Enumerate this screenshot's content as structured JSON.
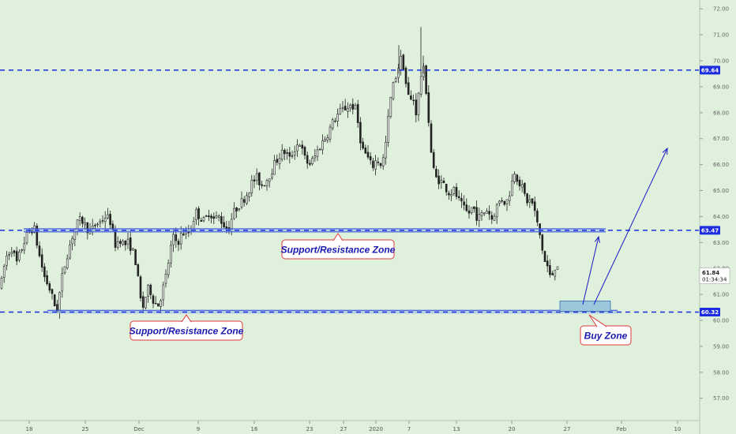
{
  "chart_data": {
    "type": "candlestick",
    "ylim": [
      56.3,
      72.1
    ],
    "y_ticks": [
      "57.00",
      "58.00",
      "59.00",
      "60.00",
      "61.00",
      "62.00",
      "63.00",
      "64.00",
      "65.00",
      "66.00",
      "67.00",
      "68.00",
      "69.00",
      "70.00",
      "71.00",
      "72.00"
    ],
    "x_ticks": [
      "18",
      "25",
      "Dec",
      "9",
      "16",
      "23",
      "27",
      "2020",
      "7",
      "13",
      "20",
      "27",
      "Feb",
      "10"
    ],
    "levels": [
      {
        "value": 69.64,
        "label": "69.64",
        "style": "dashed"
      },
      {
        "value": 63.47,
        "label": "63.47",
        "style": "dashed"
      },
      {
        "value": 60.32,
        "label": "60.32",
        "style": "dashed"
      }
    ],
    "current_price": {
      "value": 61.84,
      "label": "61.84",
      "countdown": "01:34:34"
    },
    "annotations": [
      {
        "text": "Support/Resistance Zone"
      },
      {
        "text": "Support/Resistance Zone"
      },
      {
        "text": "Buy Zone"
      }
    ],
    "price_path": [
      [
        0,
        61.3
      ],
      [
        6,
        62.4
      ],
      [
        14,
        62.8
      ],
      [
        20,
        62.2
      ],
      [
        28,
        62.9
      ],
      [
        35,
        63.4
      ],
      [
        42,
        63.6
      ],
      [
        48,
        62.6
      ],
      [
        55,
        61.7
      ],
      [
        62,
        61.2
      ],
      [
        68,
        60.6
      ],
      [
        72,
        60.4
      ],
      [
        76,
        61.4
      ],
      [
        82,
        62.3
      ],
      [
        90,
        63.2
      ],
      [
        96,
        63.7
      ],
      [
        102,
        63.9
      ],
      [
        108,
        63.6
      ],
      [
        114,
        63.4
      ],
      [
        120,
        63.7
      ],
      [
        126,
        63.8
      ],
      [
        132,
        64.0
      ],
      [
        138,
        63.9
      ],
      [
        142,
        63.3
      ],
      [
        146,
        62.8
      ],
      [
        150,
        63.2
      ],
      [
        156,
        62.9
      ],
      [
        162,
        63.0
      ],
      [
        168,
        62.6
      ],
      [
        172,
        62.1
      ],
      [
        176,
        60.9
      ],
      [
        180,
        60.5
      ],
      [
        184,
        61.0
      ],
      [
        188,
        61.3
      ],
      [
        194,
        60.7
      ],
      [
        200,
        60.6
      ],
      [
        206,
        61.3
      ],
      [
        210,
        61.8
      ],
      [
        214,
        62.6
      ],
      [
        218,
        63.2
      ],
      [
        224,
        63.0
      ],
      [
        230,
        63.4
      ],
      [
        236,
        63.3
      ],
      [
        242,
        63.6
      ],
      [
        246,
        64.2
      ],
      [
        252,
        64.0
      ],
      [
        258,
        63.8
      ],
      [
        264,
        64.2
      ],
      [
        270,
        63.9
      ],
      [
        276,
        64.0
      ],
      [
        282,
        63.7
      ],
      [
        288,
        63.5
      ],
      [
        294,
        64.1
      ],
      [
        300,
        64.4
      ],
      [
        306,
        64.6
      ],
      [
        312,
        64.9
      ],
      [
        318,
        65.3
      ],
      [
        324,
        65.5
      ],
      [
        330,
        65.2
      ],
      [
        336,
        65.4
      ],
      [
        342,
        65.7
      ],
      [
        348,
        66.1
      ],
      [
        354,
        66.4
      ],
      [
        360,
        66.5
      ],
      [
        366,
        66.2
      ],
      [
        372,
        66.6
      ],
      [
        378,
        66.9
      ],
      [
        384,
        66.3
      ],
      [
        390,
        66.0
      ],
      [
        396,
        66.2
      ],
      [
        402,
        66.6
      ],
      [
        408,
        66.9
      ],
      [
        414,
        67.2
      ],
      [
        420,
        67.6
      ],
      [
        426,
        67.9
      ],
      [
        432,
        68.1
      ],
      [
        438,
        68.2
      ],
      [
        444,
        68.3
      ],
      [
        450,
        68.1
      ],
      [
        454,
        67.2
      ],
      [
        458,
        66.6
      ],
      [
        464,
        66.3
      ],
      [
        470,
        65.9
      ],
      [
        476,
        66.2
      ],
      [
        482,
        66.0
      ],
      [
        486,
        66.4
      ],
      [
        490,
        67.6
      ],
      [
        494,
        68.6
      ],
      [
        498,
        69.2
      ],
      [
        502,
        69.6
      ],
      [
        506,
        70.1
      ],
      [
        510,
        69.8
      ],
      [
        514,
        68.9
      ],
      [
        518,
        68.4
      ],
      [
        522,
        68.6
      ],
      [
        526,
        68.0
      ],
      [
        530,
        68.9
      ],
      [
        534,
        69.9
      ],
      [
        538,
        69.1
      ],
      [
        542,
        67.6
      ],
      [
        546,
        66.1
      ],
      [
        550,
        65.5
      ],
      [
        556,
        65.4
      ],
      [
        562,
        65.2
      ],
      [
        568,
        64.9
      ],
      [
        574,
        65.0
      ],
      [
        580,
        64.6
      ],
      [
        586,
        64.3
      ],
      [
        592,
        64.1
      ],
      [
        598,
        64.4
      ],
      [
        604,
        63.9
      ],
      [
        610,
        64.1
      ],
      [
        616,
        64.3
      ],
      [
        622,
        63.9
      ],
      [
        628,
        64.4
      ],
      [
        634,
        64.7
      ],
      [
        640,
        64.5
      ],
      [
        646,
        65.1
      ],
      [
        650,
        65.8
      ],
      [
        654,
        65.5
      ],
      [
        660,
        65.1
      ],
      [
        666,
        64.6
      ],
      [
        672,
        64.6
      ],
      [
        676,
        64.2
      ],
      [
        680,
        63.6
      ],
      [
        684,
        63.1
      ],
      [
        688,
        62.3
      ],
      [
        692,
        62.1
      ],
      [
        696,
        61.6
      ],
      [
        700,
        61.9
      ],
      [
        704,
        62.3
      ],
      [
        708,
        61.8
      ]
    ]
  }
}
